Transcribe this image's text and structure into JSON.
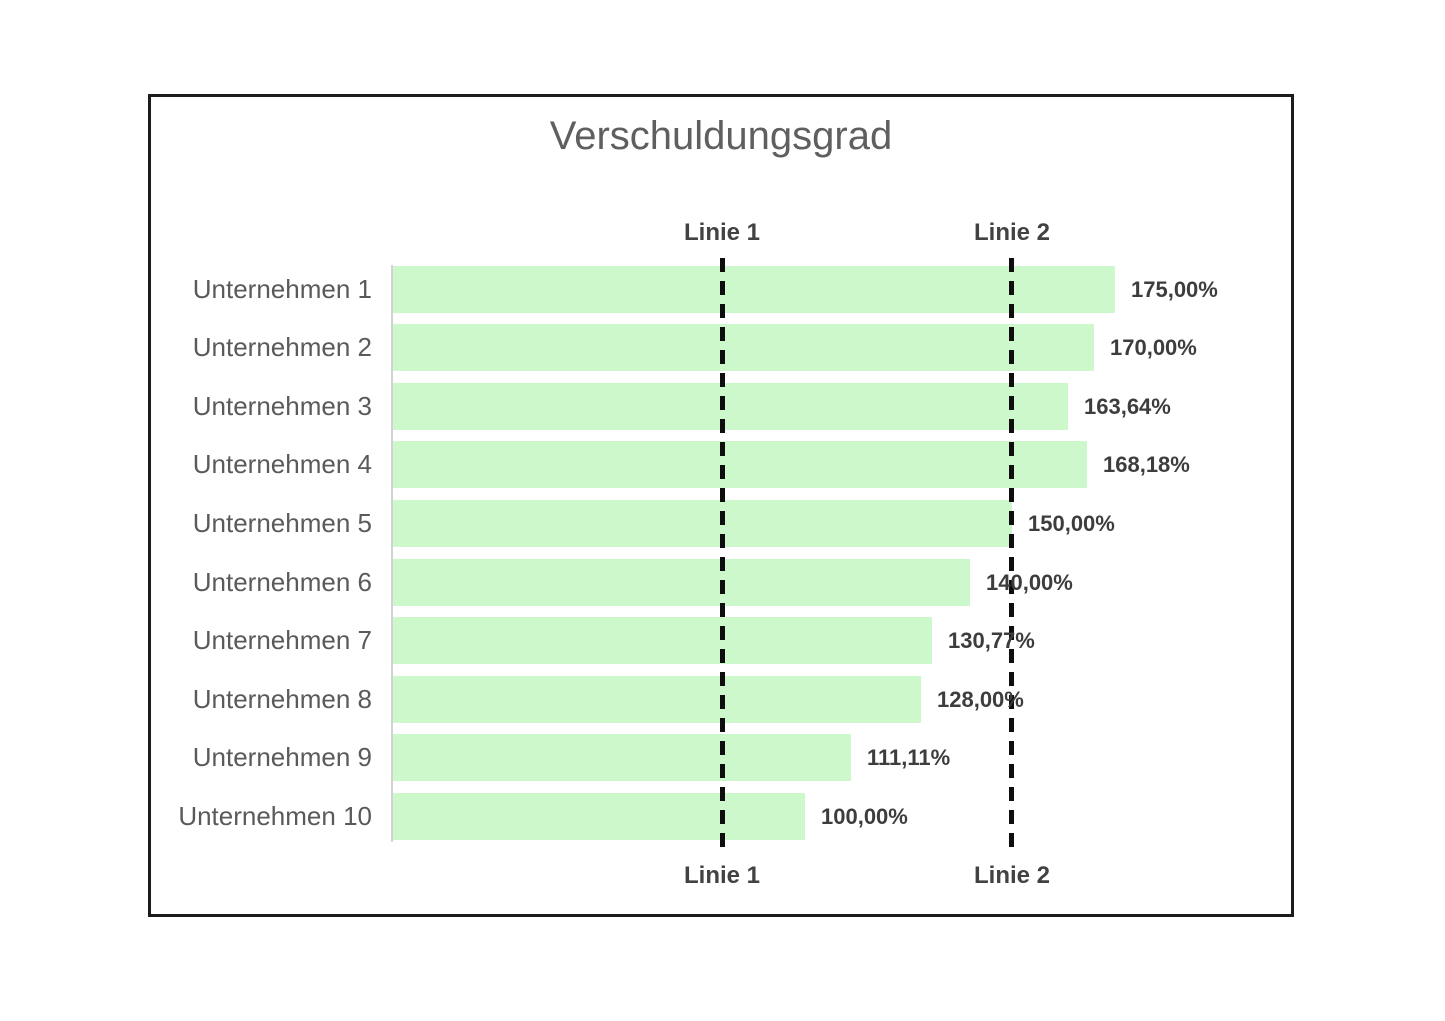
{
  "page": {
    "background": "#ffffff"
  },
  "chart_data": {
    "type": "bar",
    "orientation": "horizontal",
    "title": "Verschuldungsgrad",
    "categories": [
      "Unternehmen 1",
      "Unternehmen 2",
      "Unternehmen 3",
      "Unternehmen 4",
      "Unternehmen 5",
      "Unternehmen 6",
      "Unternehmen 7",
      "Unternehmen 8",
      "Unternehmen 9",
      "Unternehmen 10"
    ],
    "values": [
      175.0,
      170.0,
      163.64,
      168.18,
      150.0,
      140.0,
      130.77,
      128.0,
      111.11,
      100.0
    ],
    "value_labels": [
      "175,00%",
      "170,00%",
      "163,64%",
      "168,18%",
      "150,00%",
      "140,00%",
      "130,77%",
      "128,00%",
      "111,11%",
      "100,00%"
    ],
    "unit": "%",
    "xlim": [
      0,
      218
    ],
    "grid": false,
    "legend_position": "none",
    "value_label_position": "outside-end",
    "bar_color": "#ccf8cc",
    "reference_lines": [
      {
        "label": "Linie 1",
        "value": 80,
        "style": "dashed",
        "color": "#0e0e0e"
      },
      {
        "label": "Linie 2",
        "value": 150,
        "style": "dashed",
        "color": "#0e0e0e"
      }
    ]
  },
  "colors": {
    "bar_green": "#ccf8cc",
    "frame_border": "#1c1c1c",
    "title_text": "#5f5f5f",
    "category_text": "#5a5a5a",
    "value_text": "#3d3d3d",
    "ref_label_text": "#424242",
    "axis_line": "#d2d2d2"
  }
}
